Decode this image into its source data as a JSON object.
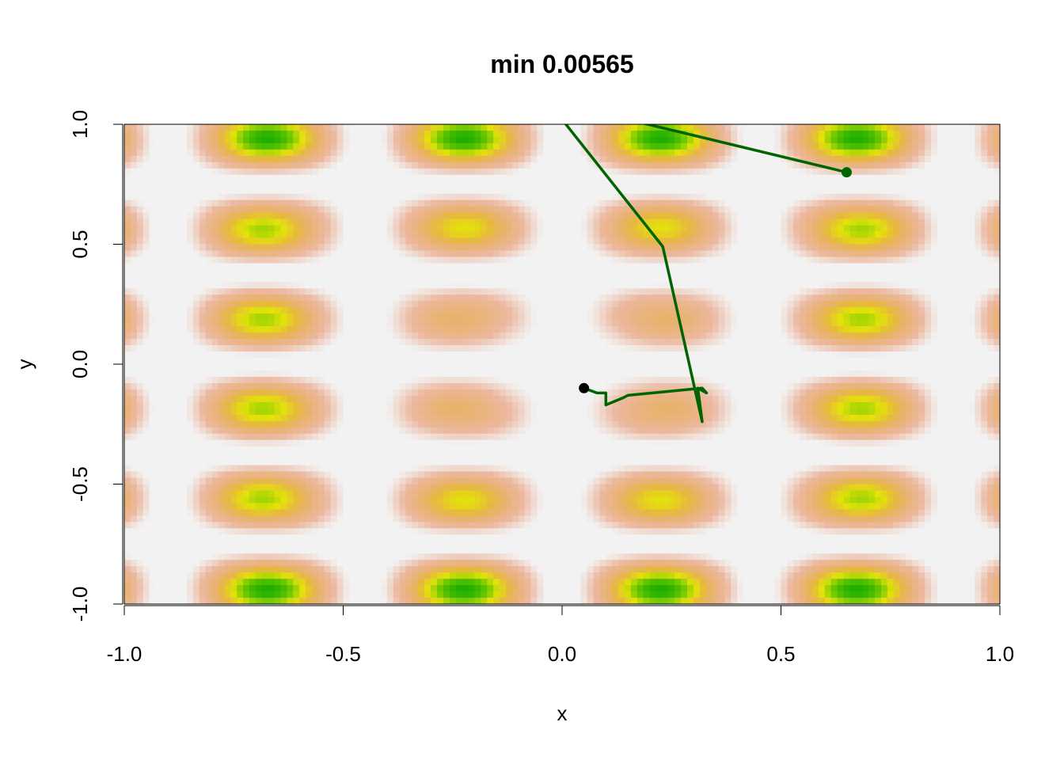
{
  "chart_data": {
    "type": "heatmap",
    "title": "min 0.00565",
    "xlabel": "x",
    "ylabel": "y",
    "xlim": [
      -1.0,
      1.0
    ],
    "ylim": [
      -1.0,
      1.0
    ],
    "x_ticks": [
      "-1.0",
      "-0.5",
      "0.0",
      "0.5",
      "1.0"
    ],
    "y_ticks": [
      "-1.0",
      "-0.5",
      "0.0",
      "0.5",
      "1.0"
    ],
    "x_tick_values": [
      -1.0,
      -0.5,
      0.0,
      0.5,
      1.0
    ],
    "y_tick_values": [
      -1.0,
      -0.5,
      0.0,
      0.5,
      1.0
    ],
    "grid": false,
    "colors": {
      "background": "#f2f2f2",
      "low": "#eeb99f",
      "mid": "#e6b640",
      "high_yellow": "#e5e500",
      "high_green": "#00a600",
      "path": "#006400",
      "end_point": "#000000"
    },
    "path": {
      "x": [
        0.65,
        0.15,
        0.0,
        0.23,
        0.32,
        0.31,
        0.33,
        0.32,
        0.15,
        0.14,
        0.1,
        0.1,
        0.08,
        0.05
      ],
      "y": [
        0.8,
        1.02,
        1.02,
        0.49,
        -0.24,
        -0.1,
        -0.12,
        -0.1,
        -0.13,
        -0.14,
        -0.17,
        -0.12,
        -0.12,
        -0.1
      ]
    },
    "start_point": {
      "x": 0.65,
      "y": 0.8
    },
    "end_point": {
      "x": 0.05,
      "y": -0.1
    }
  }
}
